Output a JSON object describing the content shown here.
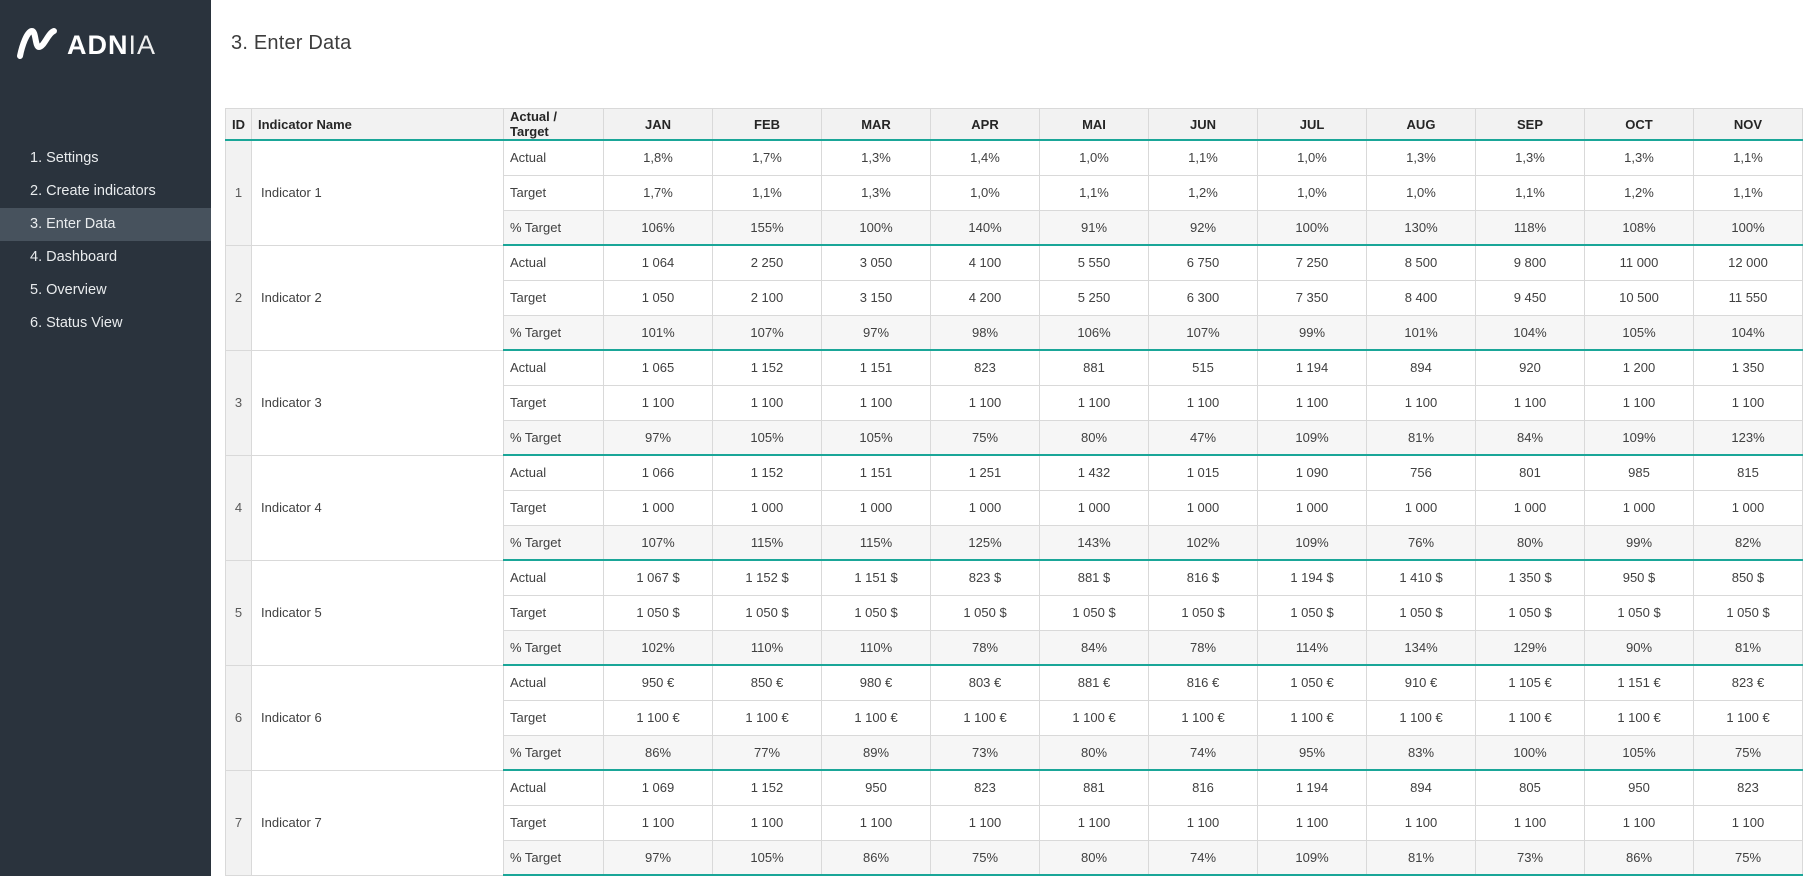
{
  "colors": {
    "accent_teal": "#1AA698",
    "sidebar_bg": "#2A333D",
    "sidebar_active_bg": "#47525D"
  },
  "sidebar": {
    "logo": {
      "bold": "ADN",
      "light": "IA",
      "mark": "adnia-logo-mark"
    },
    "items": [
      {
        "label": "1. Settings",
        "slug": "settings",
        "active": false
      },
      {
        "label": "2. Create indicators",
        "slug": "create-indicators",
        "active": false
      },
      {
        "label": "3. Enter Data",
        "slug": "enter-data",
        "active": true
      },
      {
        "label": "4. Dashboard",
        "slug": "dashboard",
        "active": false
      },
      {
        "label": "5. Overview",
        "slug": "overview",
        "active": false
      },
      {
        "label": "6. Status View",
        "slug": "status-view",
        "active": false
      }
    ]
  },
  "page": {
    "title": "3. Enter Data"
  },
  "table": {
    "headers": {
      "id": "ID",
      "name": "Indicator Name",
      "actual_target": "Actual / Target",
      "months": [
        "JAN",
        "FEB",
        "MAR",
        "APR",
        "MAI",
        "JUN",
        "JUL",
        "AUG",
        "SEP",
        "OCT",
        "NOV"
      ]
    },
    "row_labels": [
      "Actual",
      "Target",
      "% Target"
    ],
    "indicators": [
      {
        "id": "1",
        "name": "Indicator 1",
        "actual": [
          "1,8%",
          "1,7%",
          "1,3%",
          "1,4%",
          "1,0%",
          "1,1%",
          "1,0%",
          "1,3%",
          "1,3%",
          "1,3%",
          "1,1%"
        ],
        "target": [
          "1,7%",
          "1,1%",
          "1,3%",
          "1,0%",
          "1,1%",
          "1,2%",
          "1,0%",
          "1,0%",
          "1,1%",
          "1,2%",
          "1,1%"
        ],
        "pct_target": [
          "106%",
          "155%",
          "100%",
          "140%",
          "91%",
          "92%",
          "100%",
          "130%",
          "118%",
          "108%",
          "100%"
        ]
      },
      {
        "id": "2",
        "name": "Indicator 2",
        "actual": [
          "1 064",
          "2 250",
          "3 050",
          "4 100",
          "5 550",
          "6 750",
          "7 250",
          "8 500",
          "9 800",
          "11 000",
          "12 000"
        ],
        "target": [
          "1 050",
          "2 100",
          "3 150",
          "4 200",
          "5 250",
          "6 300",
          "7 350",
          "8 400",
          "9 450",
          "10 500",
          "11 550"
        ],
        "pct_target": [
          "101%",
          "107%",
          "97%",
          "98%",
          "106%",
          "107%",
          "99%",
          "101%",
          "104%",
          "105%",
          "104%"
        ]
      },
      {
        "id": "3",
        "name": "Indicator 3",
        "actual": [
          "1 065",
          "1 152",
          "1 151",
          "823",
          "881",
          "515",
          "1 194",
          "894",
          "920",
          "1 200",
          "1 350"
        ],
        "target": [
          "1 100",
          "1 100",
          "1 100",
          "1 100",
          "1 100",
          "1 100",
          "1 100",
          "1 100",
          "1 100",
          "1 100",
          "1 100"
        ],
        "pct_target": [
          "97%",
          "105%",
          "105%",
          "75%",
          "80%",
          "47%",
          "109%",
          "81%",
          "84%",
          "109%",
          "123%"
        ]
      },
      {
        "id": "4",
        "name": "Indicator 4",
        "actual": [
          "1 066",
          "1 152",
          "1 151",
          "1 251",
          "1 432",
          "1 015",
          "1 090",
          "756",
          "801",
          "985",
          "815"
        ],
        "target": [
          "1 000",
          "1 000",
          "1 000",
          "1 000",
          "1 000",
          "1 000",
          "1 000",
          "1 000",
          "1 000",
          "1 000",
          "1 000"
        ],
        "pct_target": [
          "107%",
          "115%",
          "115%",
          "125%",
          "143%",
          "102%",
          "109%",
          "76%",
          "80%",
          "99%",
          "82%"
        ]
      },
      {
        "id": "5",
        "name": "Indicator 5",
        "actual": [
          "1 067 $",
          "1 152 $",
          "1 151 $",
          "823 $",
          "881 $",
          "816 $",
          "1 194 $",
          "1 410 $",
          "1 350 $",
          "950 $",
          "850 $"
        ],
        "target": [
          "1 050 $",
          "1 050 $",
          "1 050 $",
          "1 050 $",
          "1 050 $",
          "1 050 $",
          "1 050 $",
          "1 050 $",
          "1 050 $",
          "1 050 $",
          "1 050 $"
        ],
        "pct_target": [
          "102%",
          "110%",
          "110%",
          "78%",
          "84%",
          "78%",
          "114%",
          "134%",
          "129%",
          "90%",
          "81%"
        ]
      },
      {
        "id": "6",
        "name": "Indicator 6",
        "actual": [
          "950 €",
          "850 €",
          "980 €",
          "803 €",
          "881 €",
          "816 €",
          "1 050 €",
          "910 €",
          "1 105 €",
          "1 151 €",
          "823 €"
        ],
        "target": [
          "1 100 €",
          "1 100 €",
          "1 100 €",
          "1 100 €",
          "1 100 €",
          "1 100 €",
          "1 100 €",
          "1 100 €",
          "1 100 €",
          "1 100 €",
          "1 100 €"
        ],
        "pct_target": [
          "86%",
          "77%",
          "89%",
          "73%",
          "80%",
          "74%",
          "95%",
          "83%",
          "100%",
          "105%",
          "75%"
        ]
      },
      {
        "id": "7",
        "name": "Indicator 7",
        "actual": [
          "1 069",
          "1 152",
          "950",
          "823",
          "881",
          "816",
          "1 194",
          "894",
          "805",
          "950",
          "823"
        ],
        "target": [
          "1 100",
          "1 100",
          "1 100",
          "1 100",
          "1 100",
          "1 100",
          "1 100",
          "1 100",
          "1 100",
          "1 100",
          "1 100"
        ],
        "pct_target": [
          "97%",
          "105%",
          "86%",
          "75%",
          "80%",
          "74%",
          "109%",
          "81%",
          "73%",
          "86%",
          "75%"
        ]
      }
    ]
  }
}
